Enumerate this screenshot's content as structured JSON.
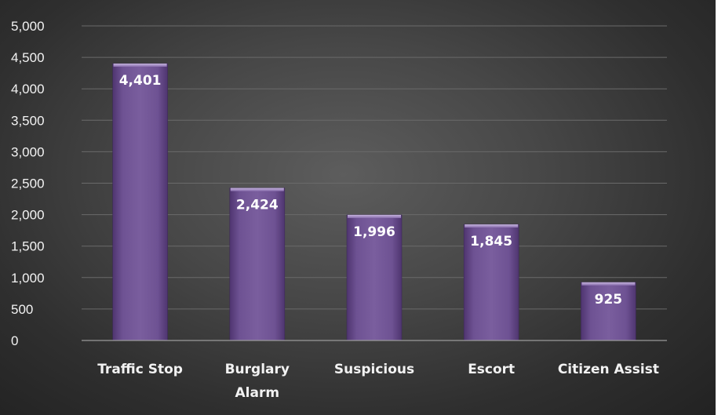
{
  "chart_data": {
    "type": "bar",
    "categories": [
      "Traffic Stop",
      "Burglary Alarm",
      "Suspicious",
      "Escort",
      "Citizen Assist"
    ],
    "category_lines": [
      [
        "Traffic Stop"
      ],
      [
        "Burglary",
        "Alarm"
      ],
      [
        "Suspicious"
      ],
      [
        "Escort"
      ],
      [
        "Citizen Assist"
      ]
    ],
    "values": [
      4401,
      2424,
      1996,
      1845,
      925
    ],
    "value_labels": [
      "4,401",
      "2,424",
      "1,996",
      "1,845",
      "925"
    ],
    "y_ticks": [
      0,
      500,
      1000,
      1500,
      2000,
      2500,
      3000,
      3500,
      4000,
      4500,
      5000
    ],
    "y_tick_labels": [
      "0",
      "500",
      "1,000",
      "1,500",
      "2,000",
      "2,500",
      "3,000",
      "3,500",
      "4,000",
      "4,500",
      "5,000"
    ],
    "ylim": [
      0,
      5000
    ],
    "title": "",
    "xlabel": "",
    "ylabel": "",
    "grid": true,
    "legend": "none",
    "colors": {
      "bar_top": "#8065a2",
      "bar_bottom": "#5a3d7c",
      "bar_edge": "#b9a8d2",
      "grid": "#6a6a6a",
      "axis": "#9a9a9a",
      "text": "#f2f2f2"
    }
  }
}
